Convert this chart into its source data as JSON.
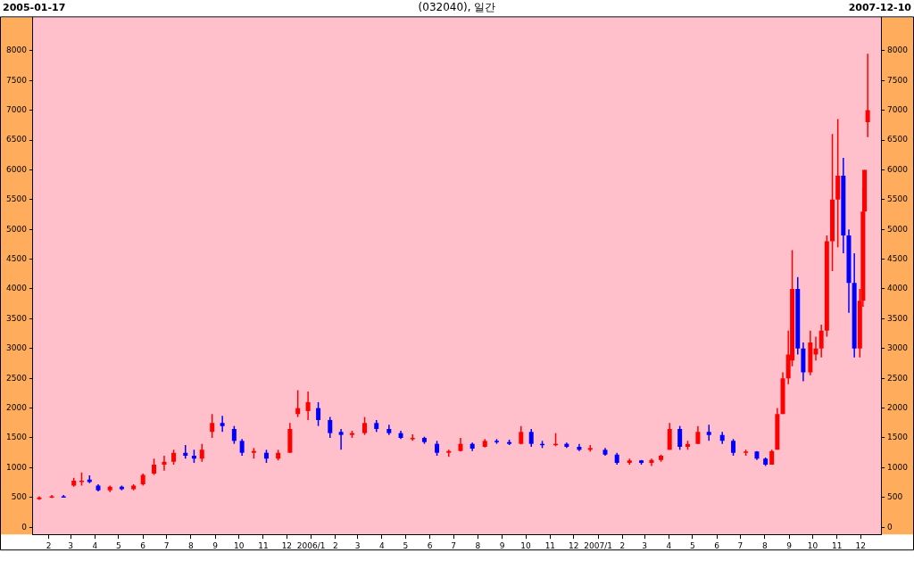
{
  "chart_data": {
    "type": "candlestick",
    "title": "(032040), 일간",
    "annotations": [
      "2005-01-17",
      "2007-12-10"
    ],
    "x": [
      "2005-01-20",
      "2005-02-05",
      "2005-02-20",
      "2005-03-05",
      "2005-03-15",
      "2005-03-25",
      "2005-04-05",
      "2005-04-20",
      "2005-05-05",
      "2005-05-20",
      "2005-06-01",
      "2005-06-15",
      "2005-06-28",
      "2005-07-10",
      "2005-07-25",
      "2005-08-05",
      "2005-08-15",
      "2005-08-28",
      "2005-09-10",
      "2005-09-25",
      "2005-10-05",
      "2005-10-20",
      "2005-11-05",
      "2005-11-20",
      "2005-12-05",
      "2005-12-15",
      "2005-12-28",
      "2006-01-10",
      "2006-01-25",
      "2006-02-08",
      "2006-02-22",
      "2006-03-10",
      "2006-03-25",
      "2006-04-10",
      "2006-04-25",
      "2006-05-10",
      "2006-05-25",
      "2006-06-10",
      "2006-06-25",
      "2006-07-10",
      "2006-07-25",
      "2006-08-10",
      "2006-08-25",
      "2006-09-10",
      "2006-09-25",
      "2006-10-08",
      "2006-10-22",
      "2006-11-08",
      "2006-11-22",
      "2006-12-08",
      "2006-12-22",
      "2007-01-10",
      "2007-01-25",
      "2007-02-10",
      "2007-02-25",
      "2007-03-10",
      "2007-03-22",
      "2007-04-02",
      "2007-04-15",
      "2007-04-25",
      "2007-05-08",
      "2007-05-22",
      "2007-06-08",
      "2007-06-22",
      "2007-07-08",
      "2007-07-22",
      "2007-08-02",
      "2007-08-10",
      "2007-08-17",
      "2007-08-24",
      "2007-08-31",
      "2007-09-05",
      "2007-09-12",
      "2007-09-19",
      "2007-09-28",
      "2007-10-05",
      "2007-10-12",
      "2007-10-19",
      "2007-10-26",
      "2007-11-02",
      "2007-11-09",
      "2007-11-16",
      "2007-11-23",
      "2007-11-30",
      "2007-12-04",
      "2007-12-06",
      "2007-12-10"
    ],
    "ohlc": [
      [
        470,
        520,
        460,
        500
      ],
      [
        500,
        540,
        490,
        520
      ],
      [
        520,
        540,
        500,
        510
      ],
      [
        700,
        830,
        680,
        780
      ],
      [
        760,
        920,
        700,
        780
      ],
      [
        800,
        870,
        740,
        760
      ],
      [
        700,
        720,
        600,
        620
      ],
      [
        620,
        700,
        590,
        680
      ],
      [
        680,
        700,
        620,
        640
      ],
      [
        640,
        720,
        620,
        700
      ],
      [
        720,
        900,
        700,
        880
      ],
      [
        900,
        1150,
        880,
        1050
      ],
      [
        1050,
        1200,
        950,
        1100
      ],
      [
        1100,
        1300,
        1050,
        1250
      ],
      [
        1250,
        1380,
        1150,
        1200
      ],
      [
        1200,
        1300,
        1080,
        1150
      ],
      [
        1150,
        1400,
        1100,
        1300
      ],
      [
        1600,
        1900,
        1500,
        1750
      ],
      [
        1750,
        1870,
        1600,
        1700
      ],
      [
        1650,
        1700,
        1400,
        1450
      ],
      [
        1450,
        1480,
        1200,
        1250
      ],
      [
        1250,
        1330,
        1150,
        1280
      ],
      [
        1250,
        1300,
        1080,
        1150
      ],
      [
        1150,
        1300,
        1120,
        1250
      ],
      [
        1250,
        1750,
        1250,
        1650
      ],
      [
        1900,
        2300,
        1850,
        2000
      ],
      [
        1950,
        2280,
        1800,
        2100
      ],
      [
        2000,
        2100,
        1700,
        1800
      ],
      [
        1800,
        1850,
        1500,
        1580
      ],
      [
        1600,
        1650,
        1300,
        1550
      ],
      [
        1550,
        1620,
        1500,
        1580
      ],
      [
        1580,
        1850,
        1550,
        1750
      ],
      [
        1750,
        1800,
        1600,
        1650
      ],
      [
        1650,
        1720,
        1550,
        1580
      ],
      [
        1580,
        1620,
        1480,
        1500
      ],
      [
        1500,
        1560,
        1450,
        1500
      ],
      [
        1500,
        1520,
        1400,
        1430
      ],
      [
        1400,
        1450,
        1200,
        1250
      ],
      [
        1250,
        1300,
        1180,
        1280
      ],
      [
        1280,
        1500,
        1270,
        1400
      ],
      [
        1400,
        1420,
        1280,
        1320
      ],
      [
        1350,
        1480,
        1340,
        1450
      ],
      [
        1450,
        1480,
        1400,
        1430
      ],
      [
        1430,
        1470,
        1380,
        1400
      ],
      [
        1400,
        1700,
        1390,
        1600
      ],
      [
        1600,
        1650,
        1350,
        1400
      ],
      [
        1400,
        1450,
        1330,
        1380
      ],
      [
        1380,
        1580,
        1360,
        1400
      ],
      [
        1400,
        1420,
        1330,
        1350
      ],
      [
        1350,
        1400,
        1280,
        1300
      ],
      [
        1300,
        1380,
        1270,
        1330
      ],
      [
        1300,
        1330,
        1200,
        1220
      ],
      [
        1220,
        1250,
        1050,
        1080
      ],
      [
        1080,
        1150,
        1050,
        1120
      ],
      [
        1120,
        1130,
        1050,
        1080
      ],
      [
        1080,
        1150,
        1030,
        1130
      ],
      [
        1130,
        1220,
        1100,
        1200
      ],
      [
        1300,
        1750,
        1300,
        1650
      ],
      [
        1650,
        1700,
        1300,
        1350
      ],
      [
        1350,
        1450,
        1300,
        1400
      ],
      [
        1400,
        1700,
        1400,
        1600
      ],
      [
        1600,
        1720,
        1450,
        1550
      ],
      [
        1550,
        1600,
        1400,
        1450
      ],
      [
        1450,
        1480,
        1200,
        1250
      ],
      [
        1250,
        1300,
        1200,
        1270
      ],
      [
        1270,
        1280,
        1130,
        1150
      ],
      [
        1150,
        1170,
        1030,
        1050
      ],
      [
        1050,
        1300,
        1050,
        1280
      ],
      [
        1300,
        2000,
        1300,
        1900
      ],
      [
        1900,
        2600,
        1900,
        2500
      ],
      [
        2500,
        3300,
        2400,
        2900
      ],
      [
        2800,
        4650,
        2700,
        4000
      ],
      [
        4000,
        4200,
        2900,
        3000
      ],
      [
        3000,
        3100,
        2450,
        2600
      ],
      [
        2600,
        3300,
        2550,
        3100
      ],
      [
        2900,
        3200,
        2800,
        3000
      ],
      [
        3000,
        3400,
        2850,
        3300
      ],
      [
        3300,
        4900,
        3200,
        4800
      ],
      [
        4800,
        6600,
        4300,
        5500
      ],
      [
        5500,
        6850,
        4700,
        5900
      ],
      [
        5900,
        6200,
        4600,
        4900
      ],
      [
        4900,
        5000,
        3600,
        4100
      ],
      [
        4100,
        4600,
        2850,
        3000
      ],
      [
        3000,
        4000,
        2850,
        3800
      ],
      [
        3800,
        5700,
        3700,
        5300
      ],
      [
        5300,
        6000,
        5300,
        6000
      ],
      [
        6800,
        7950,
        6550,
        7000
      ]
    ],
    "colors": [
      "#ff0000",
      "#ff0000",
      "#0000ff",
      "#ff0000",
      "#ff0000",
      "#0000ff",
      "#0000ff",
      "#ff0000",
      "#0000ff",
      "#ff0000",
      "#ff0000",
      "#ff0000",
      "#ff0000",
      "#ff0000",
      "#0000ff",
      "#0000ff",
      "#ff0000",
      "#ff0000",
      "#0000ff",
      "#0000ff",
      "#0000ff",
      "#ff0000",
      "#0000ff",
      "#ff0000",
      "#ff0000",
      "#ff0000",
      "#ff0000",
      "#0000ff",
      "#0000ff",
      "#0000ff",
      "#ff0000",
      "#ff0000",
      "#0000ff",
      "#0000ff",
      "#0000ff",
      "#ff0000",
      "#0000ff",
      "#0000ff",
      "#ff0000",
      "#ff0000",
      "#0000ff",
      "#ff0000",
      "#0000ff",
      "#0000ff",
      "#ff0000",
      "#0000ff",
      "#0000ff",
      "#ff0000",
      "#0000ff",
      "#0000ff",
      "#ff0000",
      "#0000ff",
      "#0000ff",
      "#ff0000",
      "#0000ff",
      "#ff0000",
      "#ff0000",
      "#ff0000",
      "#0000ff",
      "#ff0000",
      "#ff0000",
      "#0000ff",
      "#0000ff",
      "#0000ff",
      "#ff0000",
      "#0000ff",
      "#0000ff",
      "#ff0000",
      "#ff0000",
      "#ff0000",
      "#ff0000",
      "#ff0000",
      "#0000ff",
      "#0000ff",
      "#ff0000",
      "#ff0000",
      "#ff0000",
      "#ff0000",
      "#ff0000",
      "#ff0000",
      "#0000ff",
      "#0000ff",
      "#0000ff",
      "#ff0000",
      "#ff0000",
      "#ff0000",
      "#ff0000"
    ],
    "xlim": [
      "2005-01-12",
      "2007-12-27"
    ],
    "xticks": [
      {
        "value": "2005-02-01",
        "label": "2"
      },
      {
        "value": "2005-03-01",
        "label": "3"
      },
      {
        "value": "2005-04-01",
        "label": "4"
      },
      {
        "value": "2005-05-01",
        "label": "5"
      },
      {
        "value": "2005-06-01",
        "label": "6"
      },
      {
        "value": "2005-07-01",
        "label": "7"
      },
      {
        "value": "2005-08-01",
        "label": "8"
      },
      {
        "value": "2005-09-01",
        "label": "9"
      },
      {
        "value": "2005-10-01",
        "label": "10"
      },
      {
        "value": "2005-11-01",
        "label": "11"
      },
      {
        "value": "2005-12-01",
        "label": "12"
      },
      {
        "value": "2006-01-01",
        "label": "2006/1"
      },
      {
        "value": "2006-02-01",
        "label": "2"
      },
      {
        "value": "2006-03-01",
        "label": "3"
      },
      {
        "value": "2006-04-01",
        "label": "4"
      },
      {
        "value": "2006-05-01",
        "label": "5"
      },
      {
        "value": "2006-06-01",
        "label": "6"
      },
      {
        "value": "2006-07-01",
        "label": "7"
      },
      {
        "value": "2006-08-01",
        "label": "8"
      },
      {
        "value": "2006-09-01",
        "label": "9"
      },
      {
        "value": "2006-10-01",
        "label": "10"
      },
      {
        "value": "2006-11-01",
        "label": "11"
      },
      {
        "value": "2006-12-01",
        "label": "12"
      },
      {
        "value": "2007-01-01",
        "label": "2007/1"
      },
      {
        "value": "2007-02-01",
        "label": "2"
      },
      {
        "value": "2007-03-01",
        "label": "3"
      },
      {
        "value": "2007-04-01",
        "label": "4"
      },
      {
        "value": "2007-05-01",
        "label": "5"
      },
      {
        "value": "2007-06-01",
        "label": "6"
      },
      {
        "value": "2007-07-01",
        "label": "7"
      },
      {
        "value": "2007-08-01",
        "label": "8"
      },
      {
        "value": "2007-09-01",
        "label": "9"
      },
      {
        "value": "2007-10-01",
        "label": "10"
      },
      {
        "value": "2007-11-01",
        "label": "11"
      },
      {
        "value": "2007-12-01",
        "label": "12"
      }
    ],
    "ylim": [
      -120,
      8560
    ],
    "yticks": [
      0,
      500,
      1000,
      1500,
      2000,
      2500,
      3000,
      3500,
      4000,
      4500,
      5000,
      5500,
      6000,
      6500,
      7000,
      7500,
      8000
    ],
    "y2lim": [
      -120,
      8560
    ],
    "y2ticks": [
      0,
      500,
      1000,
      1500,
      2000,
      2500,
      3000,
      3500,
      4000,
      4500,
      5000,
      5500,
      6000,
      6500,
      7000,
      7500,
      8000
    ]
  }
}
